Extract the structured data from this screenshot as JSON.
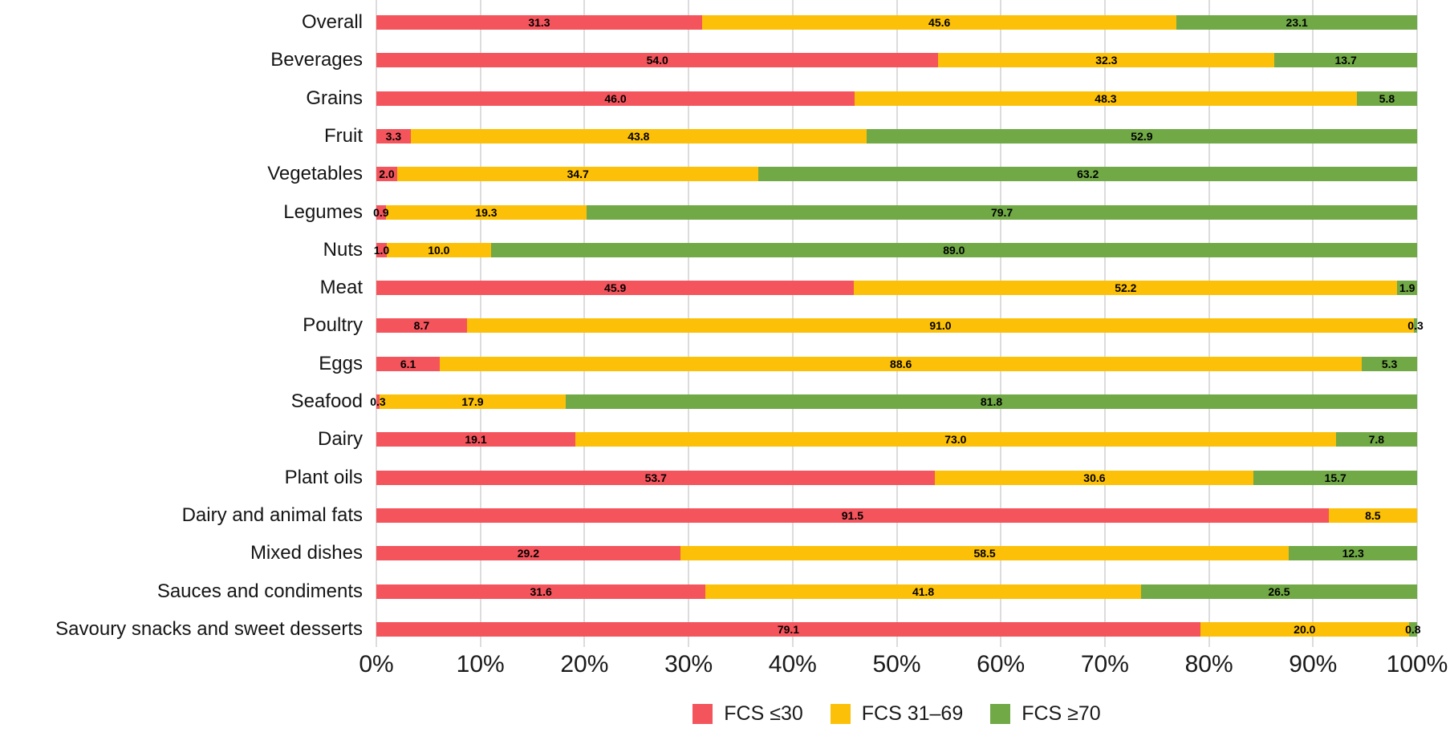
{
  "chart_data": {
    "type": "bar",
    "variant": "horizontal-stacked-100pct",
    "title": "",
    "categories": [
      "Overall",
      "Beverages",
      "Grains",
      "Fruit",
      "Vegetables",
      "Legumes",
      "Nuts",
      "Meat",
      "Poultry",
      "Eggs",
      "Seafood",
      "Dairy",
      "Plant oils",
      "Dairy and animal fats",
      "Mixed dishes",
      "Sauces and condiments",
      "Savoury snacks and sweet desserts"
    ],
    "series": [
      {
        "name": "FCS ≤30",
        "key": "fcs-le-30",
        "color": "#f4545c",
        "values": [
          31.3,
          54.0,
          46.0,
          3.3,
          2.0,
          0.9,
          1.0,
          45.9,
          8.7,
          6.1,
          0.3,
          19.1,
          53.7,
          91.5,
          29.2,
          31.6,
          79.1
        ]
      },
      {
        "name": "FCS 31–69",
        "key": "fcs-31-69",
        "color": "#fcc008",
        "values": [
          45.6,
          32.3,
          48.3,
          43.8,
          34.7,
          19.3,
          10.0,
          52.2,
          91.0,
          88.6,
          17.9,
          73.0,
          30.6,
          8.5,
          58.5,
          41.8,
          20.0
        ]
      },
      {
        "name": "FCS ≥70",
        "key": "fcs-ge-70",
        "color": "#70a946",
        "values": [
          23.1,
          13.7,
          5.8,
          52.9,
          63.2,
          79.7,
          89.0,
          1.9,
          0.3,
          5.3,
          81.8,
          7.8,
          15.7,
          null,
          12.3,
          26.5,
          0.8
        ]
      }
    ],
    "xlabel": "",
    "ylabel": "",
    "x_axis": {
      "min": 0,
      "max": 100,
      "tick_labels": [
        "0%",
        "10%",
        "20%",
        "30%",
        "40%",
        "50%",
        "60%",
        "70%",
        "80%",
        "90%",
        "100%"
      ]
    },
    "grid": "vertical",
    "value_labels": "one-decimal-inside-segments",
    "legend": {
      "position": "bottom-center",
      "entries": [
        {
          "label": "FCS ≤30",
          "color": "#f4545c"
        },
        {
          "label": "FCS 31–69",
          "color": "#fcc008"
        },
        {
          "label": "FCS ≥70",
          "color": "#70a946"
        }
      ]
    }
  },
  "layout_colors": {
    "gridline": "#dcdcdc",
    "background": "#ffffff",
    "text": "#151515"
  }
}
